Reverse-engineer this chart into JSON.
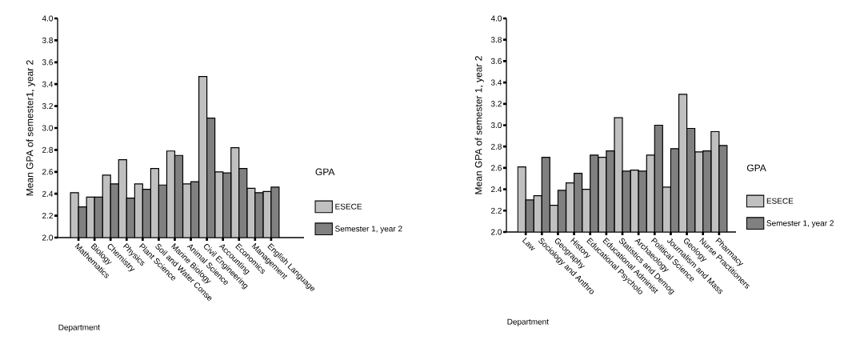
{
  "chart_data": [
    {
      "type": "bar",
      "categories": [
        "Mathematics",
        "Biology",
        "Chemistry",
        "Physics",
        "Plant Science",
        "Soil and Water Conse",
        "Marine Biology",
        "Animal Science",
        "Civil Engineering",
        "Accounting",
        "Economics",
        "Management",
        "English Language"
      ],
      "series": [
        {
          "name": "ESECE",
          "color": "#c0c0c0",
          "values": [
            2.41,
            2.37,
            2.57,
            2.71,
            2.49,
            2.63,
            2.79,
            2.49,
            3.47,
            2.6,
            2.82,
            2.45,
            2.42
          ]
        },
        {
          "name": "Semester 1, year 2",
          "color": "#808080",
          "values": [
            2.28,
            2.37,
            2.49,
            2.36,
            2.44,
            2.48,
            2.75,
            2.51,
            3.09,
            2.59,
            2.63,
            2.41,
            2.46
          ]
        }
      ],
      "xlabel": "Department",
      "ylabel": "Mean GPA of semester1, year 2",
      "legend_title": "GPA",
      "legend": "right",
      "ylim": [
        2.0,
        4.0
      ],
      "yticks": [
        {
          "value": 2.0,
          "label": "2.0"
        },
        {
          "value": 2.2,
          "label": "2.2"
        },
        {
          "value": 2.4,
          "label": "2.4"
        },
        {
          "value": 2.6,
          "label": "2.6"
        },
        {
          "value": 2.8,
          "label": "2.8"
        },
        {
          "value": 3.0,
          "label": "3.0"
        },
        {
          "value": 3.2,
          "label": "3.2"
        },
        {
          "value": 3.4,
          "label": "3.4"
        },
        {
          "value": 3.6,
          "label": "3.6"
        },
        {
          "value": 3.8,
          "label": "3.8"
        },
        {
          "value": 4.0,
          "label": "4.0"
        }
      ]
    },
    {
      "type": "bar",
      "categories": [
        "Law",
        "Sociology and Anthro",
        "Geography",
        "History",
        "Educational Psycholo",
        "Educational Administ",
        "Statistics and Demog",
        "Archaeology",
        "Political Science",
        "Journalism and Mass",
        "Geology",
        "Nurse Practitioners",
        "Pharmacy"
      ],
      "series": [
        {
          "name": "ESECE",
          "color": "#c0c0c0",
          "values": [
            2.61,
            2.34,
            2.25,
            2.46,
            2.4,
            2.7,
            3.07,
            2.58,
            2.72,
            2.42,
            3.29,
            2.75,
            2.94
          ]
        },
        {
          "name": "Semester 1, year 2",
          "color": "#808080",
          "values": [
            2.3,
            2.7,
            2.39,
            2.55,
            2.72,
            2.76,
            2.57,
            2.57,
            3.0,
            2.78,
            2.97,
            2.76,
            2.81
          ]
        }
      ],
      "xlabel": "Department",
      "ylabel": "Mean GPA of semester 1, year 2",
      "legend_title": "GPA",
      "legend": "right",
      "ylim": [
        2.0,
        4.0
      ],
      "yticks": [
        {
          "value": 2.0,
          "label": "2.0"
        },
        {
          "value": 2.2,
          "label": "2.2"
        },
        {
          "value": 2.4,
          "label": "2.4"
        },
        {
          "value": 2.6,
          "label": "2.6"
        },
        {
          "value": 2.8,
          "label": "2.8"
        },
        {
          "value": 3.0,
          "label": "3.0"
        },
        {
          "value": 3.2,
          "label": "3.2"
        },
        {
          "value": 3.4,
          "label": "3.4"
        },
        {
          "value": 3.6,
          "label": "3.6"
        },
        {
          "value": 3.8,
          "label": "3.8"
        },
        {
          "value": 4.0,
          "label": "4.0"
        }
      ]
    }
  ]
}
